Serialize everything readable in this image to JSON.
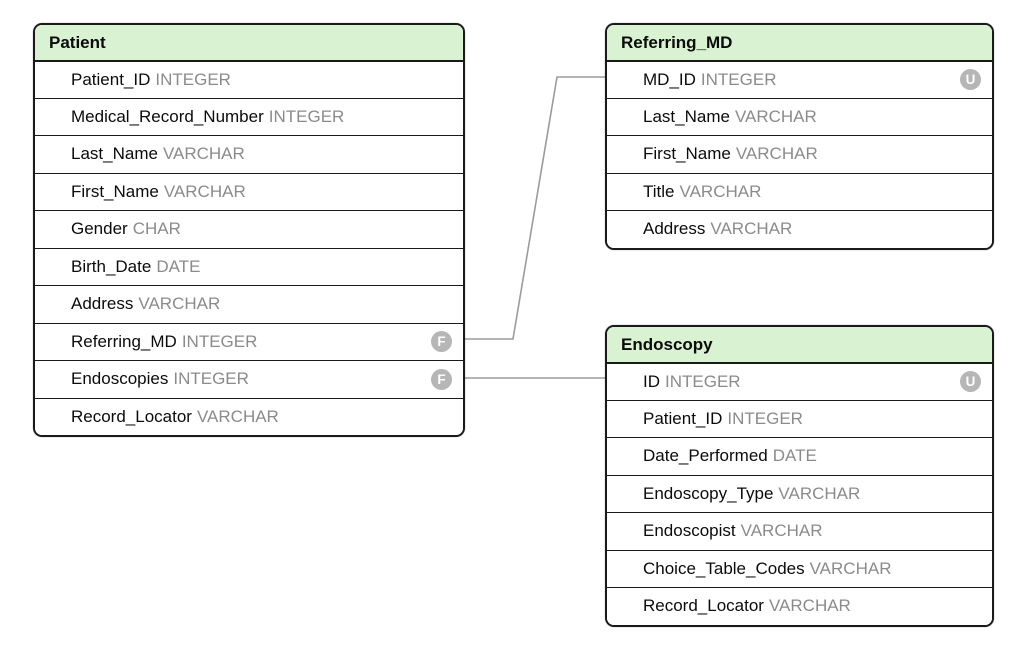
{
  "diagram": {
    "colors": {
      "header_bg": "#d9f2d2",
      "border": "#1a1a1a",
      "field_text": "#0b0b0b",
      "type_text": "#8b8b8b",
      "badge_bg": "#b6b6b6",
      "badge_text": "#ffffff",
      "connector": "#9b9b9b",
      "canvas_bg": "#ffffff"
    },
    "badge_legend": {
      "F": "foreign-key",
      "U": "unique-key"
    },
    "tables": [
      {
        "name": "Patient",
        "fields": [
          {
            "name": "Patient_ID",
            "type": "INTEGER",
            "badge": ""
          },
          {
            "name": "Medical_Record_Number",
            "type": "INTEGER",
            "badge": ""
          },
          {
            "name": "Last_Name",
            "type": "VARCHAR",
            "badge": ""
          },
          {
            "name": "First_Name",
            "type": "VARCHAR",
            "badge": ""
          },
          {
            "name": "Gender",
            "type": "CHAR",
            "badge": ""
          },
          {
            "name": "Birth_Date",
            "type": "DATE",
            "badge": ""
          },
          {
            "name": "Address",
            "type": "VARCHAR",
            "badge": ""
          },
          {
            "name": "Referring_MD",
            "type": "INTEGER",
            "badge": "F"
          },
          {
            "name": "Endoscopies",
            "type": "INTEGER",
            "badge": "F"
          },
          {
            "name": "Record_Locator",
            "type": "VARCHAR",
            "badge": ""
          }
        ]
      },
      {
        "name": "Referring_MD",
        "fields": [
          {
            "name": "MD_ID",
            "type": "INTEGER",
            "badge": "U"
          },
          {
            "name": "Last_Name",
            "type": "VARCHAR",
            "badge": ""
          },
          {
            "name": "First_Name",
            "type": "VARCHAR",
            "badge": ""
          },
          {
            "name": "Title",
            "type": "VARCHAR",
            "badge": ""
          },
          {
            "name": "Address",
            "type": "VARCHAR",
            "badge": ""
          }
        ]
      },
      {
        "name": "Endoscopy",
        "fields": [
          {
            "name": "ID",
            "type": "INTEGER",
            "badge": "U"
          },
          {
            "name": "Patient_ID",
            "type": "INTEGER",
            "badge": ""
          },
          {
            "name": "Date_Performed",
            "type": "DATE",
            "badge": ""
          },
          {
            "name": "Endoscopy_Type",
            "type": "VARCHAR",
            "badge": ""
          },
          {
            "name": "Endoscopist",
            "type": "VARCHAR",
            "badge": ""
          },
          {
            "name": "Choice_Table_Codes",
            "type": "VARCHAR",
            "badge": ""
          },
          {
            "name": "Record_Locator",
            "type": "VARCHAR",
            "badge": ""
          }
        ]
      }
    ],
    "relationships": [
      {
        "from": "Patient.Referring_MD",
        "to": "Referring_MD.MD_ID"
      },
      {
        "from": "Patient.Endoscopies",
        "to": "Endoscopy.ID"
      }
    ]
  }
}
